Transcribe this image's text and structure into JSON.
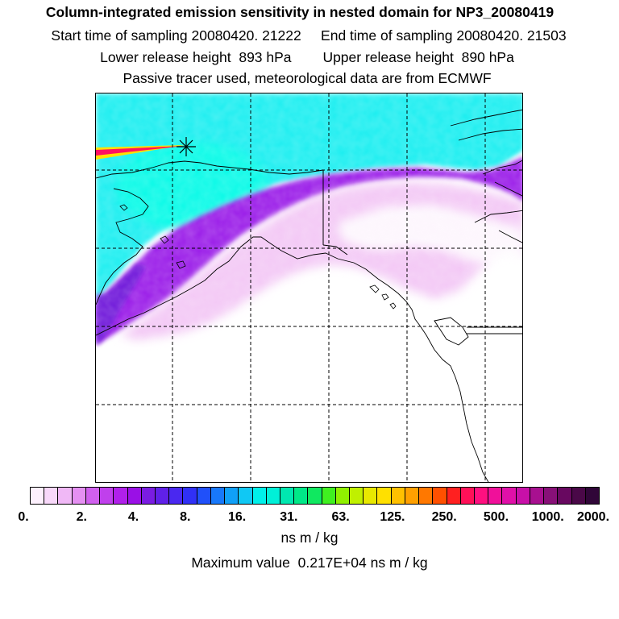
{
  "header": {
    "title": "Column-integrated emission sensitivity in nested domain for NP3_20080419",
    "sampling_line": "Start time of sampling 20080420. 21222     End time of sampling 20080420. 21503",
    "release_line": "Lower release height  893 hPa        Upper release height  890 hPa",
    "tracer_line": "Passive tracer used, meteorological data are from ECMWF"
  },
  "map": {
    "release_marker": "release-point-star",
    "colors": {
      "ocean_background": "#1aeef0",
      "near_field_cyan": "#00ffe4",
      "magenta_light": "#f3c8f5",
      "violet": "#9a1fe8",
      "deep_violet": "#6a14d8",
      "plume_red": "#ff1060",
      "plume_yellow": "#ffe000"
    }
  },
  "colorbar": {
    "segments": [
      "#fdf0fd",
      "#f8d8fa",
      "#f0b8f6",
      "#e590f2",
      "#d060ee",
      "#c040ec",
      "#b020ea",
      "#9a10e6",
      "#7a1ce2",
      "#6020e8",
      "#4a28f0",
      "#3030f6",
      "#2050fa",
      "#1878fa",
      "#10a0f8",
      "#10c8f4",
      "#00f0ea",
      "#00f0d8",
      "#00e8b0",
      "#00e888",
      "#10e860",
      "#40f020",
      "#90f000",
      "#c0f000",
      "#e8e800",
      "#ffe000",
      "#ffc000",
      "#ffa000",
      "#ff7800",
      "#ff5000",
      "#ff2020",
      "#ff1058",
      "#ff1080",
      "#f0109a",
      "#e010a8",
      "#c810a8",
      "#a81090",
      "#881078",
      "#680860",
      "#4a0848",
      "#300638"
    ],
    "tick_labels": [
      "0.",
      "2.",
      "4.",
      "8.",
      "16.",
      "31.",
      "63.",
      "125.",
      "250.",
      "500.",
      "1000.",
      "2000."
    ],
    "unit": "ns m / kg"
  },
  "footer": {
    "max_value_line": "Maximum value  0.217E+04 ns m / kg"
  }
}
